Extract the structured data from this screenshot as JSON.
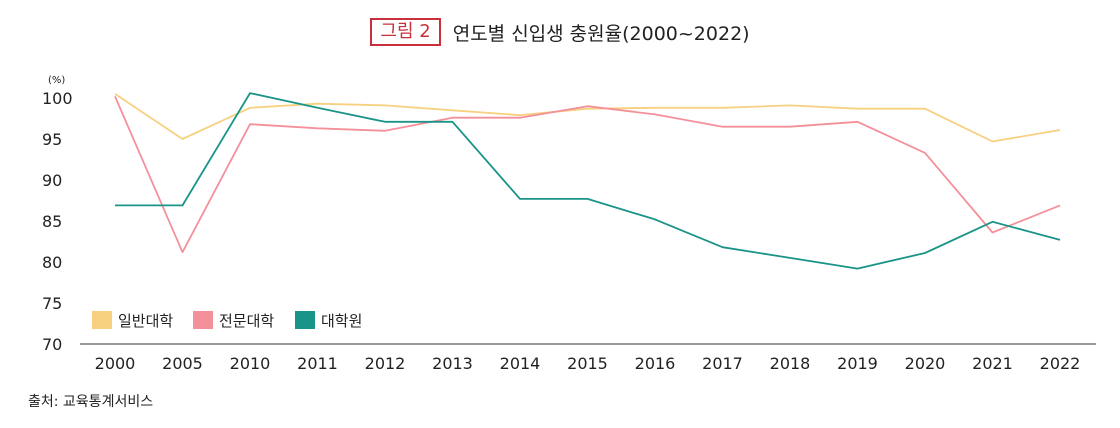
{
  "figure": {
    "badge": "그림 2",
    "title": "연도별 신입생 충원율(2000~2022)"
  },
  "source": "출처: 교육통계서비스",
  "chart_data": {
    "type": "line",
    "y_unit": "(%)",
    "categories": [
      "2000",
      "2005",
      "2010",
      "2011",
      "2012",
      "2013",
      "2014",
      "2015",
      "2016",
      "2017",
      "2018",
      "2019",
      "2020",
      "2021",
      "2022"
    ],
    "ylim": [
      70,
      100
    ],
    "yticks": [
      100,
      95,
      90,
      85,
      80,
      75,
      70
    ],
    "grid": false,
    "legend_position": "bottom-left",
    "series": [
      {
        "name": "일반대학",
        "color": "#f7d080",
        "values": [
          100.5,
          95.0,
          98.8,
          99.3,
          99.1,
          98.5,
          97.9,
          98.7,
          98.8,
          98.8,
          99.1,
          98.7,
          98.7,
          94.7,
          96.1
        ]
      },
      {
        "name": "전문대학",
        "color": "#f4909a",
        "values": [
          100.2,
          81.2,
          96.8,
          96.3,
          96.0,
          97.6,
          97.6,
          99.0,
          98.0,
          96.5,
          96.5,
          97.1,
          93.3,
          83.6,
          86.9
        ]
      },
      {
        "name": "대학원",
        "color": "#1a9488",
        "values": [
          86.9,
          86.9,
          100.6,
          98.8,
          97.1,
          97.1,
          87.7,
          87.7,
          85.2,
          81.8,
          80.5,
          79.2,
          81.1,
          84.9,
          82.7
        ]
      }
    ]
  }
}
